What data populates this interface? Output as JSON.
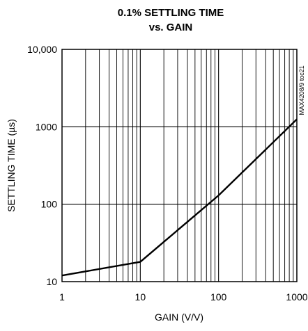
{
  "chart_data": {
    "type": "line",
    "title_line1": "0.1% SETTLING TIME",
    "title_line2": "vs. GAIN",
    "xlabel": "GAIN (V/V)",
    "ylabel": "SETTLING TIME (µs)",
    "x_scale": "log",
    "y_scale": "log",
    "xlim": [
      1,
      1000
    ],
    "ylim": [
      10,
      10000
    ],
    "x_tick_labels": [
      "1",
      "10",
      "100",
      "1000"
    ],
    "y_tick_labels": [
      "10",
      "100",
      "1000",
      "10,000"
    ],
    "grid": true,
    "side_label": "MAX4208/9 toc21",
    "series": [
      {
        "x": [
          1,
          10,
          100,
          1000
        ],
        "y": [
          12,
          18,
          130,
          1250
        ]
      }
    ]
  }
}
